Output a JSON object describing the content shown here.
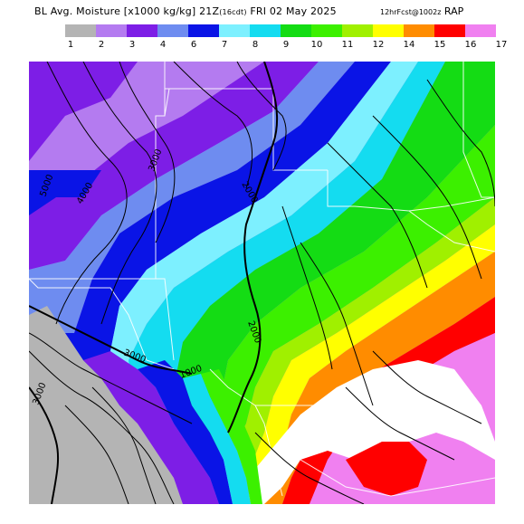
{
  "title": {
    "main": "BL Avg. Moisture [x1000 kg/kg] 21Z",
    "small": "(16cdt)",
    "date": " FRI 02 May 2025",
    "right_small": "12hrFcst@1002z",
    "right": " RAP"
  },
  "legend": {
    "ticks": [
      "1",
      "2",
      "3",
      "4",
      "6",
      "7",
      "8",
      "9",
      "10",
      "11",
      "12",
      "14",
      "15",
      "16",
      "17"
    ],
    "colors": [
      "#b4b4b4",
      "#b47bf0",
      "#7d1ee6",
      "#6e8cf0",
      "#0a14e6",
      "#7df0ff",
      "#14dcf0",
      "#14dc14",
      "#3cf000",
      "#a0f000",
      "#ffff00",
      "#ff8c00",
      "#ff0000",
      "#f080f0",
      "#ffffff"
    ]
  },
  "map": {
    "contour_labels": [
      "2000",
      "2000",
      "3000",
      "4000",
      "5000",
      "3000",
      "2000",
      "1000",
      "3000"
    ],
    "field_palette_note": "moisture shaded field"
  }
}
